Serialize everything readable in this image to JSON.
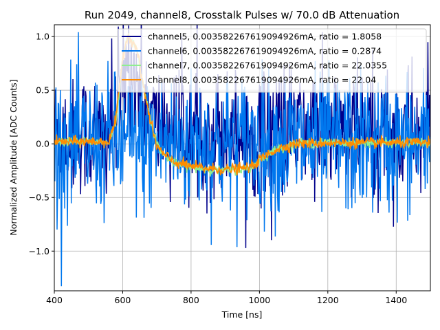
{
  "chart_data": {
    "type": "line",
    "title": "Run 2049, channel8, Crosstalk Pulses w/ 70.0 dB Attenuation",
    "xlabel": "Time [ns]",
    "ylabel": "Normalized Amplitude [ADC Counts]",
    "xlim": [
      400,
      1500
    ],
    "ylim": [
      -1.37,
      1.11
    ],
    "xticks": [
      400,
      600,
      800,
      1000,
      1200,
      1400
    ],
    "xtick_labels": [
      "400",
      "600",
      "800",
      "1000",
      "1200",
      "1400"
    ],
    "yticks": [
      -1.0,
      -0.5,
      0.0,
      0.5,
      1.0
    ],
    "ytick_labels": [
      "−1.0",
      "−0.5",
      "0.0",
      "0.5",
      "1.0"
    ],
    "grid": true,
    "legend_position": "top-right",
    "series": [
      {
        "name": "channel5, 0.003582267619094926mA, ratio = 1.8058",
        "color": "#00008b",
        "noise_amplitude": 0.3,
        "baseline_offset": 0.15,
        "x": [
          400,
          560,
          580,
          600,
          620,
          640,
          660,
          680,
          700,
          750,
          800,
          850,
          900,
          950,
          1000,
          1050,
          1100,
          1200,
          1300,
          1400,
          1500
        ],
        "values": [
          0.05,
          0.05,
          0.2,
          0.55,
          0.75,
          0.6,
          0.4,
          0.25,
          0.15,
          0.1,
          0.1,
          0.1,
          0.1,
          0.1,
          0.1,
          0.15,
          0.1,
          0.1,
          0.1,
          0.1,
          0.1
        ]
      },
      {
        "name": "channel6, 0.003582267619094926mA, ratio = 0.2874",
        "color": "#0077ee",
        "noise_amplitude": 0.33,
        "baseline_offset": 0.0,
        "x": [
          400,
          1500
        ],
        "values": [
          0.0,
          0.0
        ]
      },
      {
        "name": "channel7, 0.003582267619094926mA, ratio = 22.0355",
        "color": "#90ee90",
        "noise_amplitude": 0.02,
        "baseline_offset": 0.0,
        "x": [
          400,
          560,
          580,
          600,
          610,
          620,
          640,
          660,
          680,
          700,
          720,
          750,
          800,
          850,
          900,
          950,
          980,
          1000,
          1050,
          1100,
          1200,
          1300,
          1400,
          1500
        ],
        "values": [
          0.02,
          0.02,
          0.2,
          0.78,
          0.95,
          1.0,
          0.9,
          0.55,
          0.25,
          0.0,
          -0.1,
          -0.18,
          -0.22,
          -0.24,
          -0.25,
          -0.24,
          -0.22,
          -0.15,
          -0.05,
          0.0,
          0.01,
          0.01,
          0.01,
          0.01
        ]
      },
      {
        "name": "channel8, 0.003582267619094926mA, ratio = 22.04",
        "color": "#ff8c00",
        "noise_amplitude": 0.025,
        "baseline_offset": 0.0,
        "x": [
          400,
          560,
          580,
          600,
          610,
          620,
          640,
          660,
          680,
          700,
          720,
          750,
          800,
          850,
          900,
          950,
          980,
          1000,
          1050,
          1100,
          1200,
          1300,
          1400,
          1500
        ],
        "values": [
          0.02,
          0.02,
          0.22,
          0.8,
          0.96,
          1.0,
          0.9,
          0.55,
          0.22,
          -0.02,
          -0.1,
          -0.17,
          -0.21,
          -0.23,
          -0.24,
          -0.23,
          -0.21,
          -0.15,
          -0.05,
          0.0,
          0.01,
          0.01,
          0.01,
          0.01
        ]
      }
    ]
  }
}
